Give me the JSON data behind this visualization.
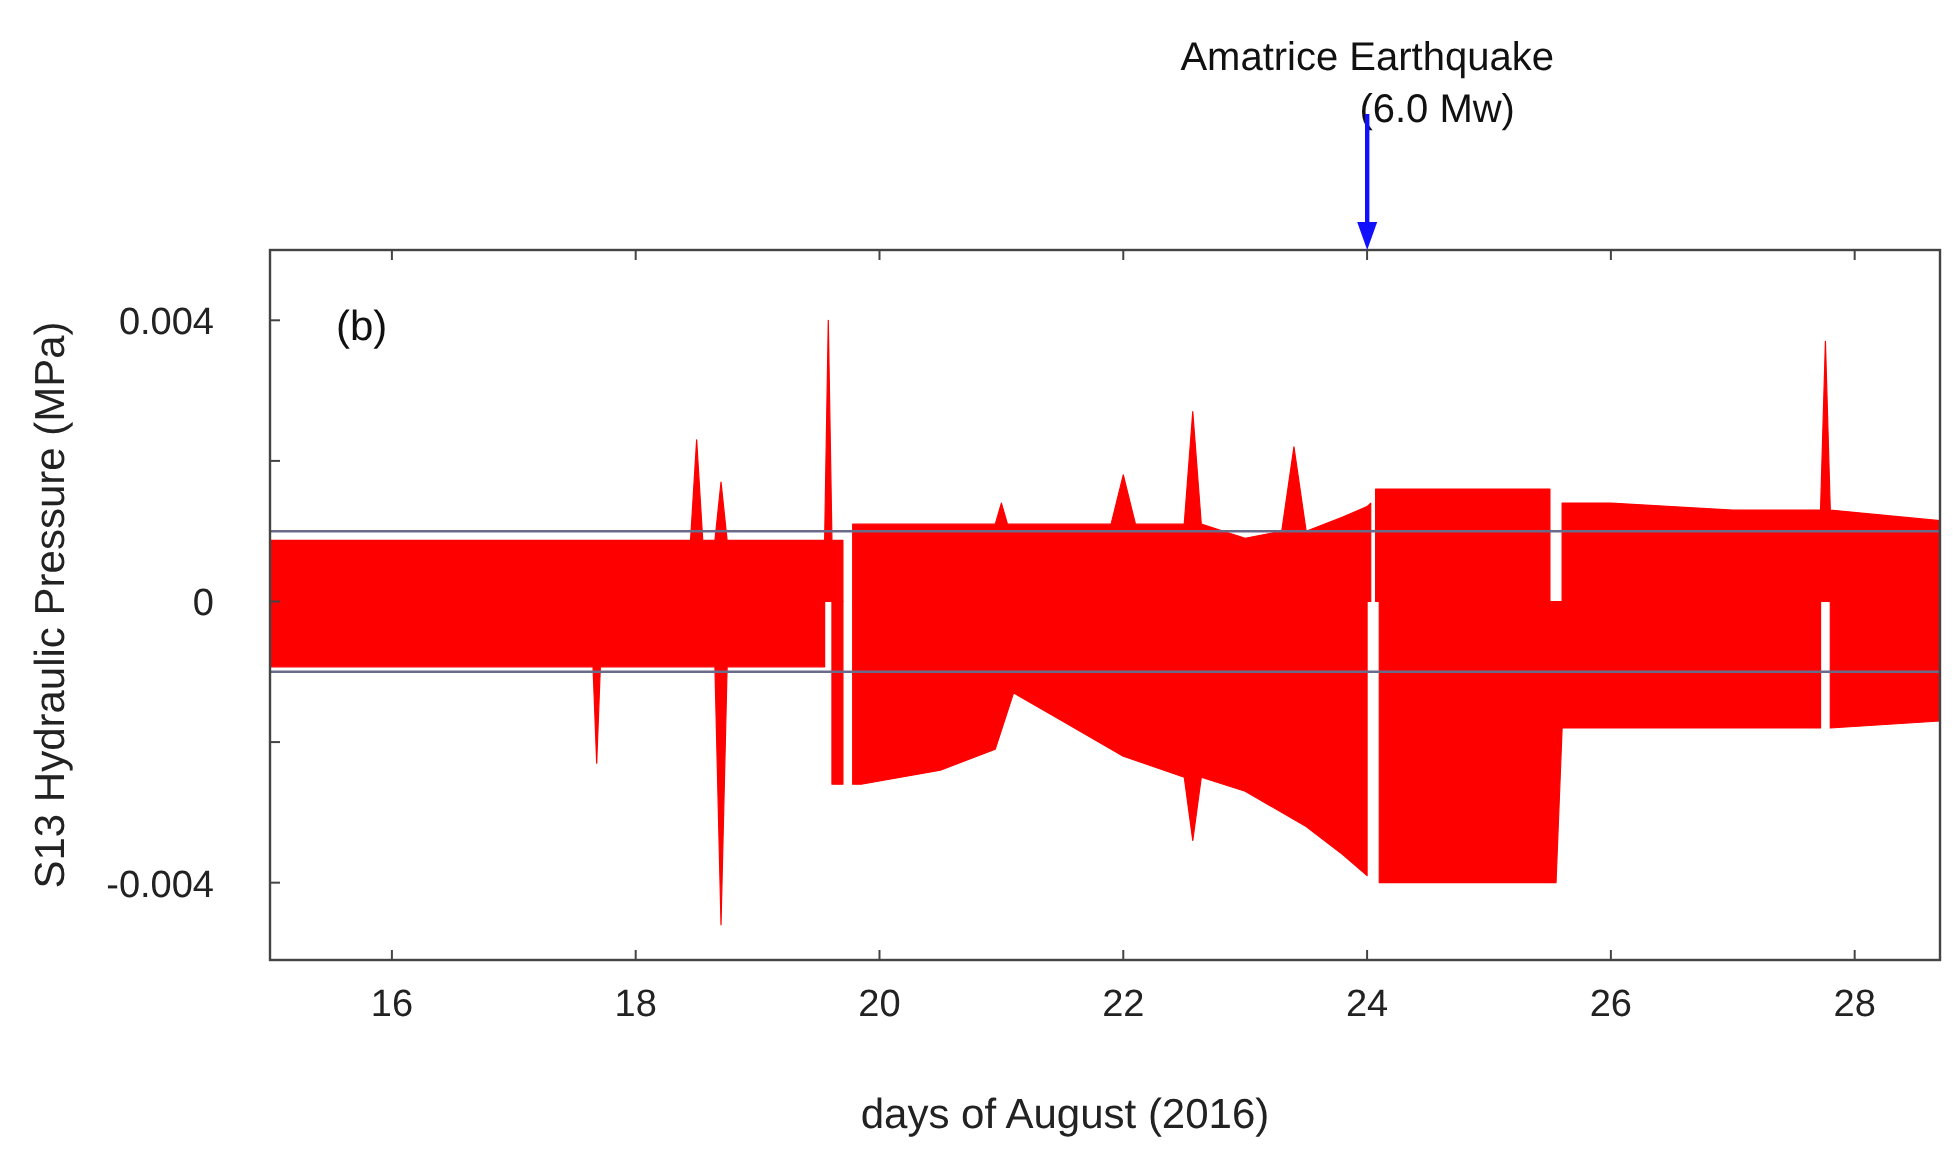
{
  "chart_data": {
    "type": "area",
    "xlabel": "days of August (2016)",
    "ylabel": "S13 Hydraulic Pressure (MPa)",
    "xlim": [
      15,
      28.7
    ],
    "ylim": [
      -0.0051,
      0.005
    ],
    "xticks": [
      16,
      18,
      20,
      22,
      24,
      26,
      28
    ],
    "yticks": [
      -0.004,
      {
        "value": -0.002,
        "label": null
      },
      0,
      {
        "value": 0.002,
        "label": null
      },
      0.004
    ],
    "grid": false,
    "series": [
      {
        "color": "#ff0000",
        "x": [
          15,
          16,
          17,
          18,
          18.45,
          18.5,
          18.55,
          18.65,
          18.7,
          18.75,
          19.5,
          19.55,
          19.58,
          19.61,
          19.7,
          19.74,
          19.78,
          19.85,
          20.5,
          20.95,
          21.0,
          21.05,
          21.5,
          21.9,
          22.0,
          22.1,
          22.5,
          22.57,
          22.64,
          23.0,
          23.3,
          23.4,
          23.5,
          23.8,
          24.0,
          24.03,
          24.05,
          24.07,
          24.1,
          24.5,
          25.0,
          25.45,
          25.5,
          25.55,
          25.6,
          26,
          27,
          27.72,
          27.76,
          27.8,
          28.7
        ],
        "values": [
          0.00087,
          0.00087,
          0.00087,
          0.00087,
          0.00087,
          0.0023,
          0.00087,
          0.00087,
          0.0017,
          0.00087,
          0.00087,
          0.00087,
          0.004,
          0.00087,
          0.00087,
          null,
          0.0011,
          0.0011,
          0.0011,
          0.0011,
          0.0014,
          0.0011,
          0.0011,
          0.0011,
          0.0018,
          0.0011,
          0.0011,
          0.0027,
          0.0011,
          0.0009,
          0.001,
          0.0022,
          0.001,
          0.0012,
          0.00135,
          0.0014,
          null,
          0.0016,
          0.0016,
          0.0016,
          0.0016,
          0.0016,
          0.0016,
          null,
          0.0014,
          0.0014,
          0.0013,
          0.0013,
          0.0037,
          0.0013,
          0.00115
        ]
      },
      {
        "color": "#ff0000",
        "x": [
          15,
          16,
          17,
          17.65,
          17.68,
          17.71,
          18,
          18.65,
          18.7,
          18.75,
          19.5,
          19.55,
          19.58,
          19.61,
          19.7,
          19.74,
          19.78,
          19.85,
          20.5,
          20.95,
          21.1,
          21.5,
          22.0,
          22.5,
          22.57,
          22.64,
          23.0,
          23.5,
          23.8,
          24.0,
          24.05,
          24.1,
          24.5,
          25.0,
          25.5,
          25.55,
          25.6,
          26,
          27,
          27.72,
          27.76,
          27.8,
          28.7
        ],
        "values": [
          -0.00093,
          -0.00093,
          -0.00093,
          -0.00093,
          -0.0023,
          -0.00093,
          -0.00093,
          -0.00093,
          -0.0046,
          -0.00093,
          -0.00093,
          -0.00093,
          null,
          -0.0026,
          -0.0026,
          null,
          -0.0026,
          -0.0026,
          -0.0024,
          -0.0021,
          -0.0013,
          -0.0017,
          -0.0022,
          -0.0025,
          -0.0034,
          -0.0025,
          -0.0027,
          -0.0032,
          -0.0036,
          -0.0039,
          null,
          -0.004,
          -0.004,
          -0.004,
          -0.004,
          -0.004,
          -0.0018,
          -0.0018,
          -0.0018,
          -0.0018,
          null,
          -0.0018,
          -0.0017
        ]
      }
    ],
    "ref_lines": [
      {
        "axis": "y",
        "value": 0.001,
        "color": "#6a6a8a"
      },
      {
        "axis": "y",
        "value": -0.001,
        "color": "#6a6a8a"
      }
    ],
    "annotations": [
      "(b)",
      "Amatrice Earthquake\n(6.0 Mw)"
    ]
  }
}
